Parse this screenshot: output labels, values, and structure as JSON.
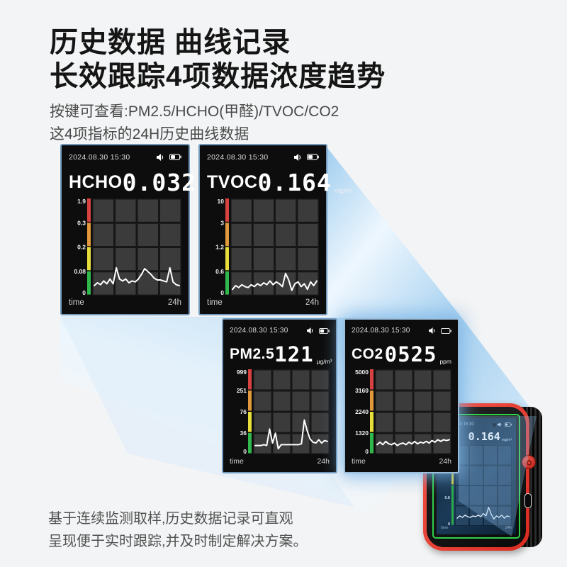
{
  "header": {
    "title_line1": "历史数据 曲线记录",
    "title_line2": "长效跟踪4项数据浓度趋势",
    "subtitle_line1": "按键可查看:PM2.5/HCHO(甲醛)/TVOC/CO2",
    "subtitle_line2": "这4项指标的24H历史曲线数据"
  },
  "footer": {
    "line1": "基于连续监测取样,历史数据记录可直观",
    "line2": "呈现便于实时跟踪,并及时制定解决方案。"
  },
  "colors": {
    "background": "#f3f4f5",
    "beam_blue": "#9fcdef",
    "screen_bg": "#0d0d0d",
    "grid_cell": "#3b3b3b",
    "bar_red": "#d84341",
    "bar_orange": "#e2983c",
    "bar_yellow": "#e8de3b",
    "bar_green": "#2fb84c",
    "line_white": "#ffffff",
    "device_red": "#e8392e",
    "device_green": "#2fd14c"
  },
  "chart_data": [
    {
      "id": "hcho",
      "type": "line",
      "label": "HCHO",
      "current_value": "0.032",
      "unit": "mg/m³",
      "datetime": "2024.08.30 15:30",
      "status_icons": [
        "speaker-icon",
        "battery-icon"
      ],
      "x_axis": {
        "left": "time",
        "right": "24h",
        "span_hours": 24
      },
      "y_gridline_labels": [
        "1.9",
        "0.3",
        "0.2",
        "0.08",
        "0"
      ],
      "y_axis_nonlinear": true,
      "grid": [
        4,
        4
      ],
      "legend": "none",
      "series": [
        {
          "name": "HCHO 24h history",
          "points_pct_of_height": [
            9,
            12,
            10,
            14,
            11,
            16,
            11,
            28,
            16,
            14,
            16,
            12,
            14,
            13,
            16,
            21,
            27,
            24,
            21,
            17,
            15,
            15,
            14,
            13,
            28,
            13,
            10,
            9
          ]
        }
      ]
    },
    {
      "id": "tvoc",
      "type": "line",
      "label": "TVOC",
      "current_value": "0.164",
      "unit": "mg/m³",
      "datetime": "2024.08.30 15:30",
      "status_icons": [
        "speaker-icon",
        "battery-icon"
      ],
      "x_axis": {
        "left": "time",
        "right": "24h",
        "span_hours": 24
      },
      "y_gridline_labels": [
        "10",
        "3",
        "1.2",
        "0.6",
        "0"
      ],
      "y_axis_nonlinear": true,
      "grid": [
        4,
        4
      ],
      "legend": "none",
      "series": [
        {
          "name": "TVOC 24h history",
          "points_pct_of_height": [
            5,
            9,
            7,
            10,
            8,
            7,
            10,
            8,
            11,
            9,
            12,
            10,
            14,
            10,
            13,
            11,
            8,
            22,
            15,
            4,
            11,
            13,
            8,
            11,
            5,
            13,
            9,
            14
          ]
        }
      ]
    },
    {
      "id": "pm25",
      "type": "line",
      "label": "PM2.5",
      "current_value": "121",
      "unit": "μg/m³",
      "datetime": "2024.08.30 15:30",
      "status_icons": [
        "speaker-icon",
        "battery-icon"
      ],
      "x_axis": {
        "left": "time",
        "right": "24h",
        "span_hours": 24
      },
      "y_gridline_labels": [
        "999",
        "251",
        "76",
        "36",
        "0"
      ],
      "y_axis_nonlinear": true,
      "grid": [
        4,
        4
      ],
      "legend": "none",
      "series": [
        {
          "name": "PM2.5 24h history",
          "points_pct_of_height": [
            9,
            9,
            9,
            10,
            9,
            29,
            12,
            24,
            5,
            10,
            10,
            10,
            10,
            10,
            10,
            10,
            11,
            40,
            27,
            17,
            13,
            12,
            16,
            12,
            15,
            14
          ]
        }
      ]
    },
    {
      "id": "co2",
      "type": "line",
      "label": "CO2",
      "current_value": "0525",
      "unit": "ppm",
      "datetime": "2024.08.30 15:30",
      "status_icons": [
        "speaker-icon",
        "battery-icon"
      ],
      "x_axis": {
        "left": "time",
        "right": "24h",
        "span_hours": 24
      },
      "y_gridline_labels": [
        "5000",
        "3160",
        "2240",
        "1320",
        "0"
      ],
      "y_axis_nonlinear": true,
      "grid": [
        4,
        4
      ],
      "legend": "none",
      "series": [
        {
          "name": "CO2 24h history",
          "points_pct_of_height": [
            10,
            13,
            10,
            14,
            11,
            10,
            12,
            9,
            11,
            12,
            10,
            13,
            11,
            14,
            11,
            13,
            12,
            14,
            12,
            15,
            13,
            16,
            14,
            16,
            15,
            16
          ]
        }
      ]
    }
  ],
  "device": {
    "datetime": "2024.08.30 15:30",
    "value": "0.164",
    "unit": "mg/m³",
    "x_left": "time",
    "x_right": "24h",
    "chart": {
      "y_gridline_labels": [
        "1.2",
        "0.6",
        "0"
      ],
      "series": [
        {
          "name": "device mini history",
          "points_pct_of_height": [
            8,
            11,
            9,
            12,
            10,
            9,
            11,
            10,
            12,
            10,
            14,
            11,
            22,
            13,
            7,
            11,
            9,
            12,
            8,
            11,
            10
          ]
        }
      ]
    }
  }
}
